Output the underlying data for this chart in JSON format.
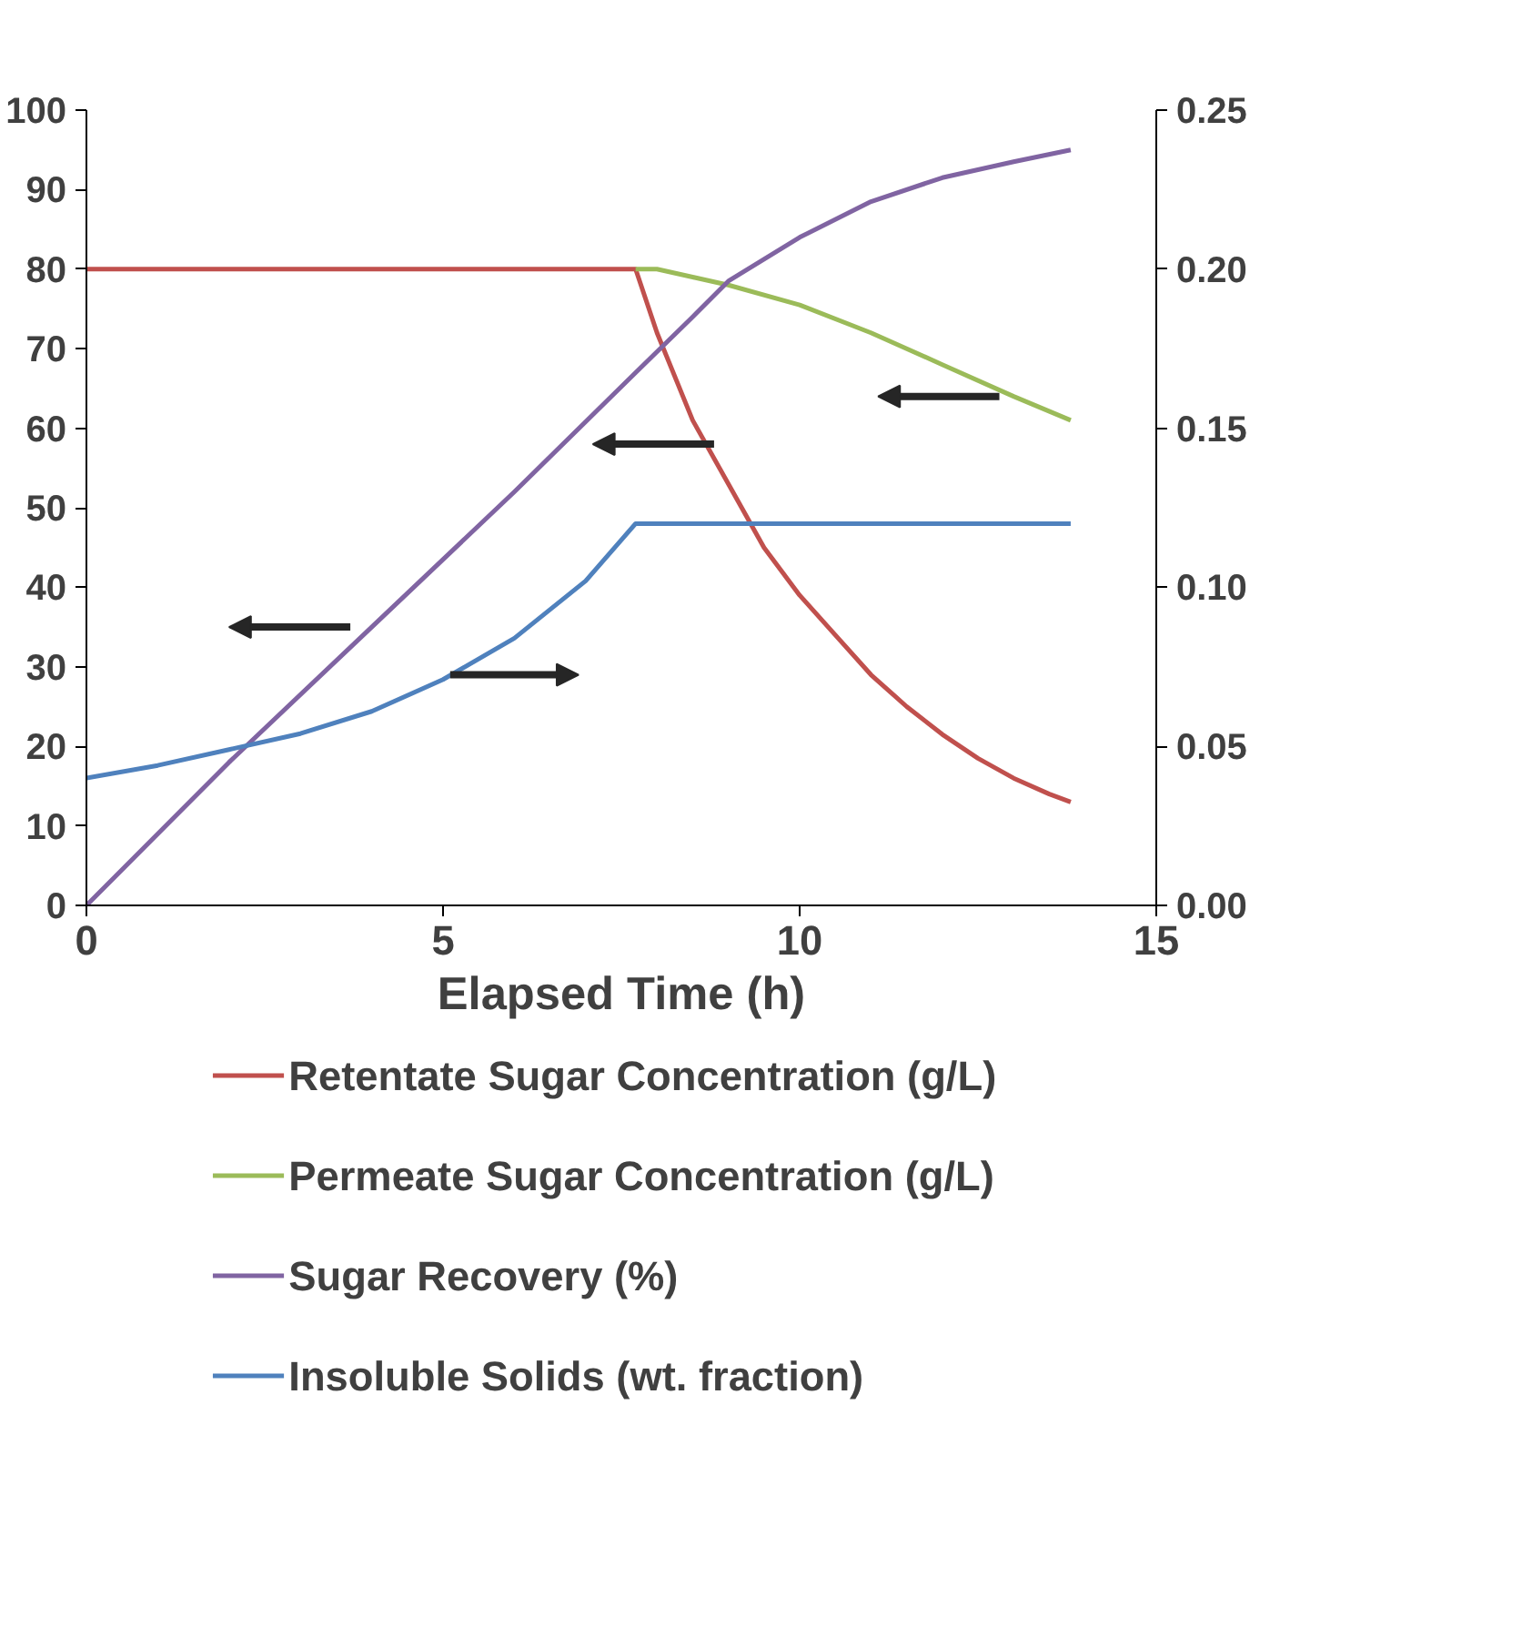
{
  "chart_data": {
    "type": "line",
    "xlabel": "Elapsed Time (h)",
    "xlim": [
      0,
      15
    ],
    "xticks": [
      0,
      5,
      10,
      15
    ],
    "ylim": [
      0,
      100
    ],
    "yticks": [
      0,
      10,
      20,
      30,
      40,
      50,
      60,
      70,
      80,
      90,
      100
    ],
    "y2lim": [
      0,
      0.25
    ],
    "y2ticks": [
      {
        "value": 0,
        "label": "0.00"
      },
      {
        "value": 0.05,
        "label": "0.05"
      },
      {
        "value": 0.1,
        "label": "0.10"
      },
      {
        "value": 0.15,
        "label": "0.15"
      },
      {
        "value": 0.2,
        "label": "0.20"
      },
      {
        "value": 0.25,
        "label": "0.25"
      }
    ],
    "grid": false,
    "legend": "bottom",
    "marker": "none",
    "line_style": "solid",
    "series": [
      {
        "name": "Retentate Sugar Concentration (g/L)",
        "color": "#c0504d",
        "x": [
          0,
          7.7,
          8.0,
          8.5,
          9.0,
          9.5,
          10,
          10.5,
          11,
          11.5,
          12,
          12.5,
          13,
          13.5,
          13.8
        ],
        "values": [
          80,
          80,
          72,
          61,
          53,
          45,
          39,
          34,
          29,
          25,
          21.5,
          18.5,
          16,
          14,
          13
        ]
      },
      {
        "name": "Permeate Sugar Concentration (g/L)",
        "color": "#9bbb59",
        "x": [
          7.7,
          8,
          8.5,
          9,
          10,
          11,
          12,
          13,
          13.8
        ],
        "values": [
          80,
          80,
          79,
          78,
          75.5,
          72,
          68,
          64,
          61
        ]
      },
      {
        "name": "Sugar Recovery (%)",
        "color": "#8064a2",
        "x": [
          0,
          2,
          4,
          6,
          7.7,
          8.5,
          9,
          10,
          11,
          12,
          13,
          13.8
        ],
        "values": [
          0,
          18,
          35,
          52,
          67,
          74,
          78.5,
          84,
          88.5,
          91.5,
          93.5,
          95
        ]
      },
      {
        "name": "Insoluble Solids (wt. fraction)",
        "color": "#4f81bd",
        "axis": "y2",
        "x": [
          0,
          1,
          2,
          3,
          4,
          5,
          6,
          7,
          7.7,
          13.8
        ],
        "values": [
          0.04,
          0.044,
          0.049,
          0.054,
          0.061,
          0.071,
          0.084,
          0.102,
          0.12,
          0.12
        ]
      }
    ]
  }
}
